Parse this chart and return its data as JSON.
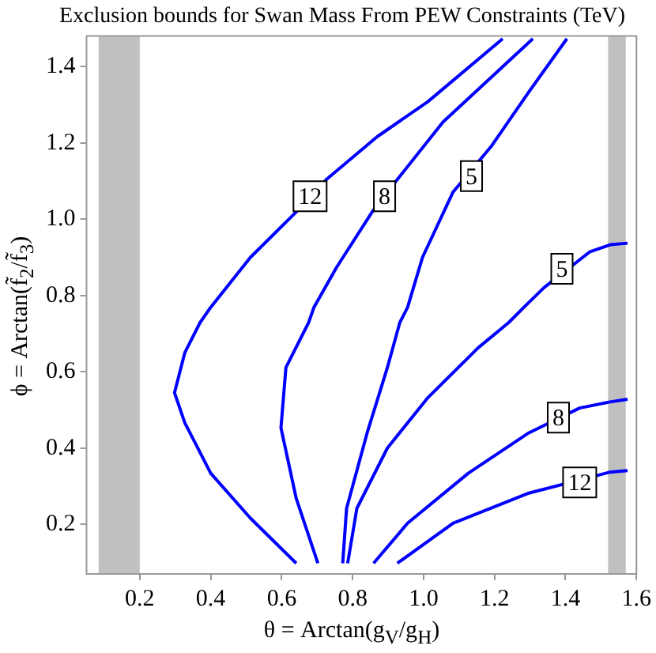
{
  "chart_data": {
    "type": "line",
    "title": "Exclusion bounds for Swan Mass From PEW Constraints (TeV)",
    "xlabel": "θ = Arctan(g$_{V}$/g$_{H}$)",
    "ylabel": "ϕ = Arctan(f̃$_{2}$/f̃$_{3}$)",
    "xlim": [
      0.05,
      1.6
    ],
    "ylim": [
      0.07,
      1.48
    ],
    "xticks": [
      0.2,
      0.4,
      0.6,
      0.8,
      {
        "value": 1,
        "label": "1.0"
      },
      1.2,
      1.4,
      1.6
    ],
    "yticks": [
      0.2,
      0.4,
      0.6,
      0.8,
      {
        "value": 1,
        "label": "1.0"
      },
      1.2,
      1.4
    ],
    "grid": false,
    "legend": false,
    "marker": "none",
    "line_style": "solid",
    "series": [
      {
        "color": "#0000ff",
        "x": [
          0.641,
          0.512,
          0.4,
          0.327,
          0.298,
          0.327,
          0.37,
          0.4,
          0.512,
          0.641,
          0.726,
          0.869,
          1.012,
          1.223
        ],
        "values": [
          0.098,
          0.216,
          0.334,
          0.466,
          0.545,
          0.65,
          0.729,
          0.769,
          0.9,
          1.019,
          1.104,
          1.216,
          1.308,
          1.473
        ]
      },
      {
        "color": "#0000ff",
        "x": [
          0.702,
          0.641,
          0.598,
          0.612,
          0.676,
          0.691,
          0.755,
          0.855,
          0.926,
          1.055,
          1.308
        ],
        "values": [
          0.098,
          0.268,
          0.453,
          0.611,
          0.729,
          0.769,
          0.874,
          1.019,
          1.104,
          1.255,
          1.473
        ]
      },
      {
        "color": "#0000ff",
        "x": [
          0.772,
          0.783,
          0.841,
          0.898,
          0.933,
          0.955,
          0.997,
          1.083,
          1.19,
          1.297,
          1.404
        ],
        "values": [
          0.098,
          0.242,
          0.44,
          0.611,
          0.729,
          0.769,
          0.9,
          1.071,
          1.19,
          1.334,
          1.473
        ]
      },
      {
        "color": "#0000ff",
        "x": [
          0.786,
          0.812,
          0.898,
          1.012,
          1.154,
          1.24,
          1.283,
          1.34,
          1.468,
          1.526,
          1.575
        ],
        "values": [
          0.098,
          0.242,
          0.4,
          0.532,
          0.663,
          0.729,
          0.769,
          0.821,
          0.914,
          0.933,
          0.937
        ]
      },
      {
        "color": "#0000ff",
        "x": [
          0.859,
          0.955,
          1.126,
          1.297,
          1.44,
          1.526,
          1.575
        ],
        "values": [
          0.098,
          0.203,
          0.334,
          0.44,
          0.505,
          0.521,
          0.528
        ]
      },
      {
        "color": "#0000ff",
        "x": [
          0.926,
          1.083,
          1.297,
          1.526,
          1.575
        ],
        "values": [
          0.098,
          0.203,
          0.282,
          0.337,
          0.341
        ]
      }
    ],
    "annotations": [
      {
        "text": "12",
        "x": 0.68,
        "y": 1.06
      },
      {
        "text": "8",
        "x": 0.89,
        "y": 1.06
      },
      {
        "text": "5",
        "x": 1.135,
        "y": 1.113
      },
      {
        "text": "5",
        "x": 1.39,
        "y": 0.87
      },
      {
        "text": "8",
        "x": 1.38,
        "y": 0.48
      },
      {
        "text": "12",
        "x": 1.44,
        "y": 0.31
      }
    ],
    "bands": [
      {
        "axis": "x",
        "from": 0.084,
        "to": 0.2,
        "color": "#c0c0c0"
      },
      {
        "axis": "x",
        "from": 1.52,
        "to": 1.57,
        "color": "#c0c0c0"
      }
    ]
  }
}
